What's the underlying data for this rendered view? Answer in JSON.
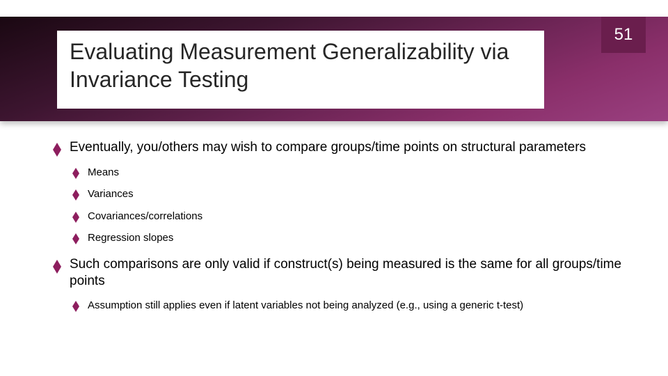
{
  "slide": {
    "page_number": "51",
    "title": "Evaluating Measurement Generalizability via Invariance Testing",
    "colors": {
      "header_gradient_start": "#1a0812",
      "header_gradient_end": "#9a4080",
      "badge_bg": "#6a1e4d",
      "badge_text": "#ffffff",
      "bullet_color": "#8d1e5e",
      "title_text": "#262626",
      "body_text": "#000000",
      "slide_bg": "#ffffff"
    },
    "typography": {
      "title_fontsize_pt": 24,
      "level1_fontsize_pt": 14,
      "level2_fontsize_pt": 11,
      "font_family": "Arial"
    },
    "bullets": [
      {
        "text": "Eventually, you/others may wish to compare groups/time points on structural parameters",
        "children": [
          {
            "text": "Means"
          },
          {
            "text": "Variances"
          },
          {
            "text": "Covariances/correlations"
          },
          {
            "text": "Regression slopes"
          }
        ]
      },
      {
        "text": "Such comparisons are only valid if construct(s) being measured is the same for all groups/time points",
        "children": [
          {
            "text": "Assumption still applies even if latent variables not being analyzed (e.g., using a generic t-test)"
          }
        ]
      }
    ]
  }
}
